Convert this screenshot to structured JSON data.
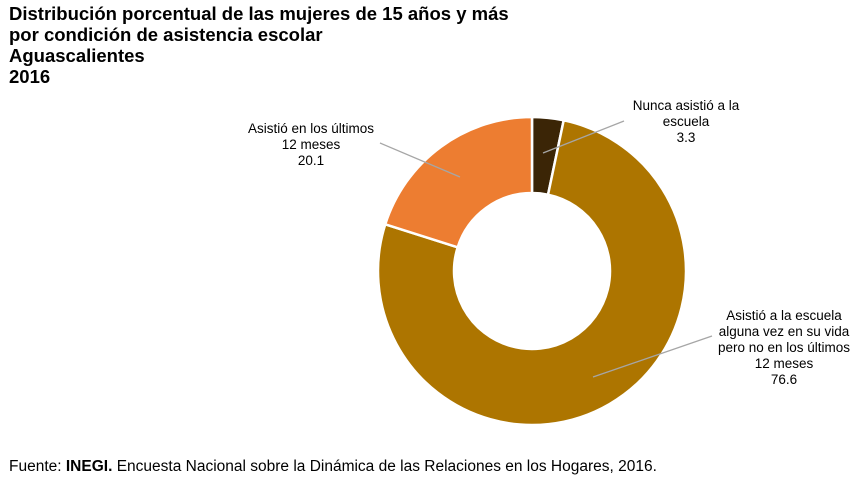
{
  "chart_data": {
    "type": "pie",
    "variant": "donut",
    "title": [
      "Distribución porcentual de las mujeres de 15 años y más",
      "por condición de asistencia escolar",
      "Aguascalientes",
      "2016"
    ],
    "slices": [
      {
        "label_lines": [
          "Nunca asistió a la",
          "escuela"
        ],
        "value": 3.3,
        "value_label": "3.3",
        "color": "#3b2506"
      },
      {
        "label_lines": [
          "Asistió a la escuela",
          "alguna vez en su vida",
          "pero no en los últimos",
          "12 meses"
        ],
        "value": 76.6,
        "value_label": "76.6",
        "color": "#ad7500"
      },
      {
        "label_lines": [
          "Asistió en los últimos",
          "12 meses"
        ],
        "value": 20.1,
        "value_label": "20.1",
        "color": "#ed7d31"
      }
    ],
    "start_angle_deg": 0,
    "direction": "clockwise",
    "leader_line_color": "#a6a6a6",
    "slice_border_color": "#ffffff"
  },
  "source": {
    "prefix": "Fuente: ",
    "org": "INEGI.",
    "text": " Encuesta Nacional sobre la Dinámica de las Relaciones en los Hogares, 2016."
  }
}
